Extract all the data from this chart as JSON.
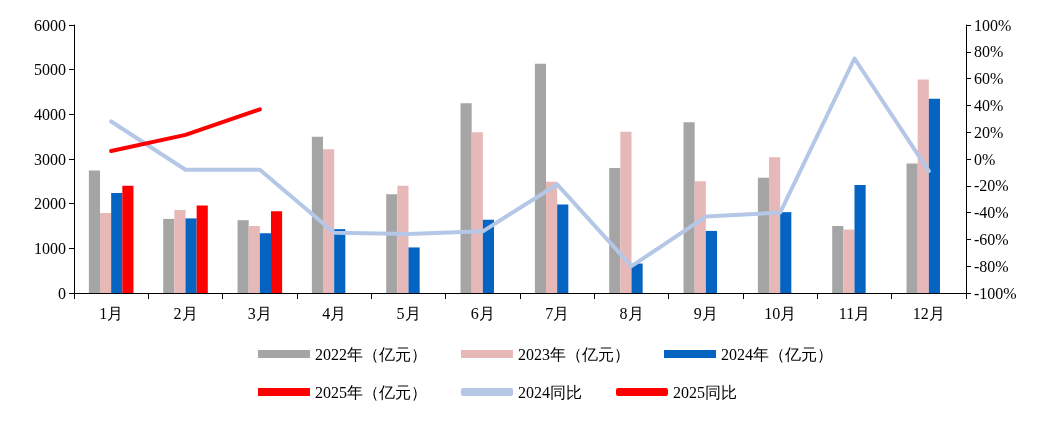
{
  "chart_data": {
    "type": "bar",
    "categories": [
      "1月",
      "2月",
      "3月",
      "4月",
      "5月",
      "6月",
      "7月",
      "8月",
      "9月",
      "10月",
      "11月",
      "12月"
    ],
    "series": [
      {
        "name": "2022年（亿元）",
        "color": "#a5a5a5",
        "values": [
          2740,
          1660,
          1630,
          3500,
          2210,
          4250,
          5130,
          2800,
          3820,
          2580,
          1500,
          2900
        ]
      },
      {
        "name": "2023年（亿元）",
        "color": "#e6b8b7",
        "values": [
          1790,
          1860,
          1500,
          3220,
          2400,
          3600,
          2490,
          3610,
          2500,
          3040,
          1420,
          4780
        ]
      },
      {
        "name": "2024年（亿元）",
        "color": "#0563c1",
        "values": [
          2240,
          1670,
          1340,
          1430,
          1020,
          1640,
          1980,
          660,
          1390,
          1810,
          2420,
          4350
        ]
      },
      {
        "name": "2025年（亿元）",
        "color": "#ff0000",
        "values": [
          2400,
          1960,
          1830,
          null,
          null,
          null,
          null,
          null,
          null,
          null,
          null,
          null
        ]
      },
      {
        "name": "2024同比",
        "type": "line",
        "axis": "y2",
        "color": "#b4c7e7",
        "values": [
          28,
          -8,
          -8,
          -55,
          -56,
          -54,
          -19,
          -80,
          -43,
          -40,
          75,
          -9
        ]
      },
      {
        "name": "2025同比",
        "type": "line",
        "axis": "y2",
        "color": "#ff0000",
        "values": [
          6,
          18,
          37,
          null,
          null,
          null,
          null,
          null,
          null,
          null,
          null,
          null
        ]
      }
    ],
    "ylim": [
      0,
      6000
    ],
    "yticks": [
      0,
      1000,
      2000,
      3000,
      4000,
      5000,
      6000
    ],
    "y2lim": [
      -100,
      100
    ],
    "y2ticks": [
      {
        "value": -100,
        "label": "-100%"
      },
      {
        "value": -80,
        "label": "-80%"
      },
      {
        "value": -60,
        "label": "-60%"
      },
      {
        "value": -40,
        "label": "-40%"
      },
      {
        "value": -20,
        "label": "-20%"
      },
      {
        "value": 0,
        "label": "0%"
      },
      {
        "value": 20,
        "label": "20%"
      },
      {
        "value": 40,
        "label": "40%"
      },
      {
        "value": 60,
        "label": "60%"
      },
      {
        "value": 80,
        "label": "80%"
      },
      {
        "value": 100,
        "label": "100%"
      }
    ],
    "grid": false,
    "legend": "bottom",
    "marker": "none",
    "line_style": "solid"
  }
}
